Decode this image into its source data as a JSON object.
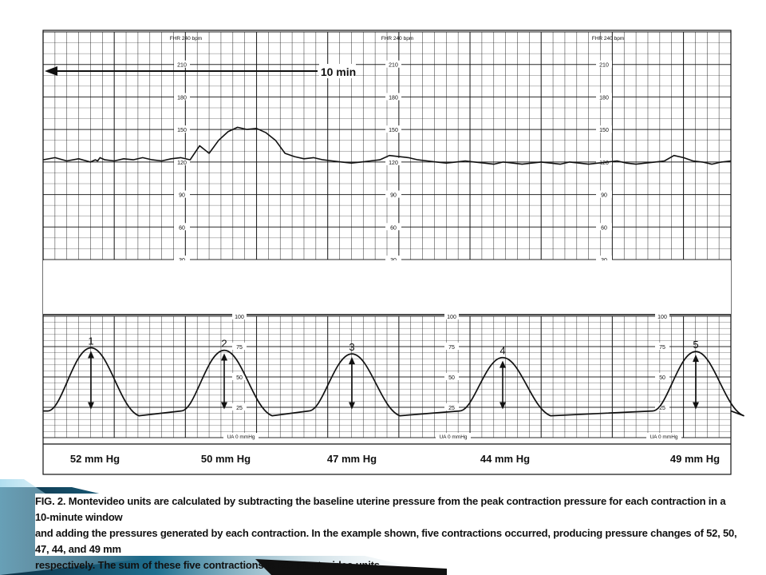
{
  "chart_data": [
    {
      "type": "line",
      "title": "FHR 240 bpm",
      "time_annotation": "10 min",
      "ylim": [
        30,
        240
      ],
      "y_ticks": [
        30,
        60,
        90,
        120,
        150,
        180,
        210
      ],
      "y_tick_labels": [
        "30",
        "60",
        "90",
        "120",
        "150",
        "180",
        "210"
      ],
      "x": [
        0.0,
        0.5,
        1.0,
        1.5,
        2.0,
        2.2,
        2.3,
        2.4,
        2.6,
        3.0,
        3.4,
        3.8,
        4.2,
        4.6,
        5.0,
        5.4,
        5.8,
        6.2,
        6.6,
        7.0,
        7.4,
        7.8,
        8.2,
        8.6,
        9.0,
        9.4,
        9.8,
        10.2,
        10.6,
        11.0,
        11.4,
        11.8,
        12.2,
        12.6,
        13.0,
        13.4,
        13.8,
        14.2,
        14.6,
        15.0,
        15.4,
        15.8,
        16.2,
        16.6,
        17.0,
        17.4,
        17.8,
        18.2,
        18.6,
        19.0,
        19.4,
        19.8,
        20.2,
        20.6,
        21.0,
        21.4,
        21.8,
        22.2,
        22.6,
        23.0,
        23.4,
        23.8,
        24.2,
        24.6,
        25.0,
        25.4,
        25.8,
        26.2,
        26.6,
        27.0,
        27.4,
        27.8,
        28.2,
        28.6,
        29.0
      ],
      "series": [
        {
          "values": [
            122,
            124,
            121,
            123,
            120,
            122,
            121,
            124,
            122,
            121,
            123,
            122,
            124,
            122,
            121,
            123,
            124,
            122,
            135,
            128,
            140,
            148,
            152,
            150,
            151,
            147,
            140,
            128,
            125,
            123,
            124,
            122,
            121,
            120,
            119,
            120,
            121,
            122,
            126,
            125,
            124,
            122,
            121,
            120,
            119,
            120,
            121,
            120,
            119,
            118,
            120,
            119,
            118,
            119,
            120,
            119,
            118,
            120,
            119,
            118,
            119,
            120,
            121,
            119,
            118,
            119,
            120,
            121,
            126,
            124,
            121,
            120,
            118,
            120,
            121
          ]
        }
      ]
    },
    {
      "type": "line",
      "ylim": [
        0,
        100
      ],
      "y_ticks": [
        0,
        25,
        50,
        75,
        100
      ],
      "y_tick_labels": [
        "0",
        "25",
        "50",
        "75",
        "100"
      ],
      "panel_labels": [
        "100",
        "75",
        "50",
        "25"
      ],
      "unit_label": "UA 0 mmHg",
      "contractions": [
        {
          "number": "1",
          "label": "52 mm Hg",
          "pressure_change": 52
        },
        {
          "number": "2",
          "label": "50 mm Hg",
          "pressure_change": 50
        },
        {
          "number": "3",
          "label": "47 mm Hg",
          "pressure_change": 47
        },
        {
          "number": "4",
          "label": "44 mm Hg",
          "pressure_change": 44
        },
        {
          "number": "5",
          "label": "49 mm Hg",
          "pressure_change": 49
        }
      ]
    }
  ],
  "caption": {
    "fig_label": "FIG. 2.",
    "line1": "Montevideo units are calculated by subtracting the baseline uterine pressure from the peak contraction pressure for each contraction in a 10-minute window",
    "line2": "and adding the pressures generated by each contraction. In the example shown, five contractions occurred, producing pressure changes of 52, 50, 47, 44, and 49 mm",
    "line3": "respectively. The sum of these five contractions is 242 Montevideo units."
  },
  "colors": {
    "ink": "#111111",
    "grid": "#222222",
    "background": "#ffffff",
    "accent_dark": "#0b2f44",
    "accent_mid": "#1f6f8f",
    "accent_light": "#8fd0e8"
  }
}
